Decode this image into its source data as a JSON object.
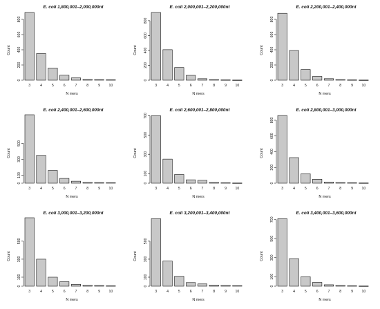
{
  "chart_data": [
    {
      "type": "bar",
      "title": "E. coli 1,800,001–2,000,000nt",
      "xlabel": "N mers",
      "ylabel": "Count",
      "categories": [
        "3",
        "4",
        "5",
        "6",
        "7",
        "8",
        "9",
        "10"
      ],
      "values": [
        890,
        350,
        160,
        65,
        30,
        10,
        8,
        5
      ],
      "ylim": [
        0,
        900
      ],
      "yticks": [
        0,
        200,
        400,
        600,
        800
      ]
    },
    {
      "type": "bar",
      "title": "E. coli 2,000,001–2,200,000nt",
      "xlabel": "N mers",
      "ylabel": "Count",
      "categories": [
        "3",
        "4",
        "5",
        "6",
        "7",
        "8",
        "9",
        "10"
      ],
      "values": [
        910,
        410,
        170,
        65,
        20,
        8,
        4,
        2
      ],
      "ylim": [
        0,
        920
      ],
      "yticks": [
        0,
        200,
        400,
        600,
        800
      ]
    },
    {
      "type": "bar",
      "title": "E. coli 2,200,001–2,400,000nt",
      "xlabel": "N mers",
      "ylabel": "Count",
      "categories": [
        "3",
        "4",
        "5",
        "6",
        "7",
        "8",
        "9",
        "10"
      ],
      "values": [
        880,
        390,
        140,
        50,
        20,
        8,
        4,
        2
      ],
      "ylim": [
        0,
        900
      ],
      "yticks": [
        0,
        200,
        400,
        600,
        800
      ]
    },
    {
      "type": "bar",
      "title": "E. coli 2,400,001–2,600,000nt",
      "xlabel": "N mers",
      "ylabel": "Count",
      "categories": [
        "3",
        "4",
        "5",
        "6",
        "7",
        "8",
        "9",
        "10"
      ],
      "values": [
        860,
        350,
        160,
        60,
        25,
        10,
        8,
        6
      ],
      "ylim": [
        0,
        860
      ],
      "yticks": [
        0,
        100,
        300,
        500
      ]
    },
    {
      "type": "bar",
      "title": "E. coli 2,600,001–2,800,000nt",
      "xlabel": "N mers",
      "ylabel": "Count",
      "categories": [
        "3",
        "4",
        "5",
        "6",
        "7",
        "8",
        "9",
        "10"
      ],
      "values": [
        700,
        250,
        90,
        35,
        30,
        8,
        4,
        2
      ],
      "ylim": [
        0,
        710
      ],
      "yticks": [
        0,
        100,
        300,
        500,
        700
      ]
    },
    {
      "type": "bar",
      "title": "E. coli 2,800,001–3,000,000nt",
      "xlabel": "N mers",
      "ylabel": "Count",
      "categories": [
        "3",
        "4",
        "5",
        "6",
        "7",
        "8",
        "9",
        "10"
      ],
      "values": [
        860,
        325,
        120,
        50,
        15,
        8,
        5,
        3
      ],
      "ylim": [
        0,
        870
      ],
      "yticks": [
        0,
        200,
        400,
        600,
        800
      ]
    },
    {
      "type": "bar",
      "title": "E. coli 3,000,001–3,200,000nt",
      "xlabel": "N mers",
      "ylabel": "Count",
      "categories": [
        "3",
        "4",
        "5",
        "6",
        "7",
        "8",
        "9",
        "10"
      ],
      "values": [
        760,
        300,
        100,
        50,
        20,
        10,
        8,
        4
      ],
      "ylim": [
        0,
        760
      ],
      "yticks": [
        0,
        100,
        300,
        500
      ]
    },
    {
      "type": "bar",
      "title": "E. coli 3,200,001–3,400,000nt",
      "xlabel": "N mers",
      "ylabel": "Count",
      "categories": [
        "3",
        "4",
        "5",
        "6",
        "7",
        "8",
        "9",
        "10"
      ],
      "values": [
        750,
        280,
        110,
        40,
        25,
        12,
        8,
        6
      ],
      "ylim": [
        0,
        760
      ],
      "yticks": [
        0,
        100,
        300,
        500
      ]
    },
    {
      "type": "bar",
      "title": "E. coli 3,400,001–3,600,000nt",
      "xlabel": "N mers",
      "ylabel": "Count",
      "categories": [
        "3",
        "4",
        "5",
        "6",
        "7",
        "8",
        "9",
        "10"
      ],
      "values": [
        710,
        290,
        100,
        40,
        15,
        8,
        4,
        2
      ],
      "ylim": [
        0,
        720
      ],
      "yticks": [
        0,
        100,
        300,
        500,
        700
      ]
    }
  ]
}
